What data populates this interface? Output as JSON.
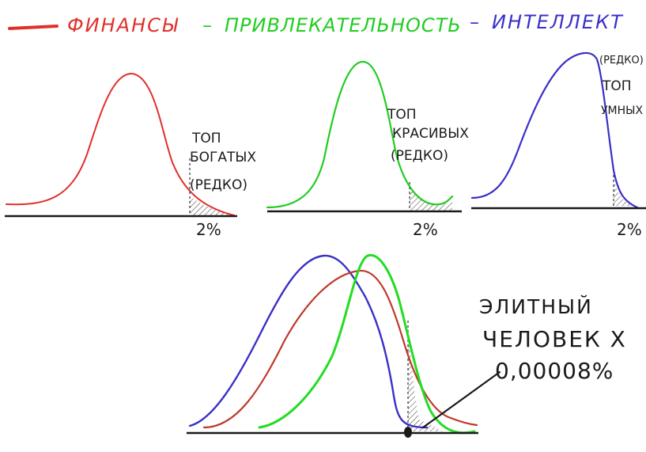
{
  "legend": {
    "finance": {
      "label": "ФИНАНСЫ",
      "color": "#e0302a"
    },
    "attract": {
      "label": "ПРИВЛЕКАТЕЛЬНОСТЬ",
      "color": "#22cc22"
    },
    "intel": {
      "label": "ИНТЕЛЛЕКТ",
      "color": "#3a30c8"
    },
    "sep1": "–",
    "sep2": "–"
  },
  "panels": {
    "rich": {
      "label_lines": [
        "ТОП",
        "БОГАТЫХ",
        "(РЕДКО)"
      ],
      "percent": "2%"
    },
    "beauty": {
      "label_lines": [
        "ТОП",
        "КРАСИВЫХ",
        "(РЕДКО)"
      ],
      "percent": "2%"
    },
    "smart": {
      "label_lines": [
        "(РЕДКО)",
        "ТОП",
        "УМНЫХ"
      ],
      "percent": "2%"
    }
  },
  "combined": {
    "label_lines": [
      "ЭЛИТНЫЙ",
      "ЧЕЛОВЕК Х",
      "0,00008%"
    ]
  },
  "colors": {
    "ink": "#1a1a1a",
    "red": "#c0392b",
    "green": "#22cc22",
    "blue": "#3a30c8"
  }
}
